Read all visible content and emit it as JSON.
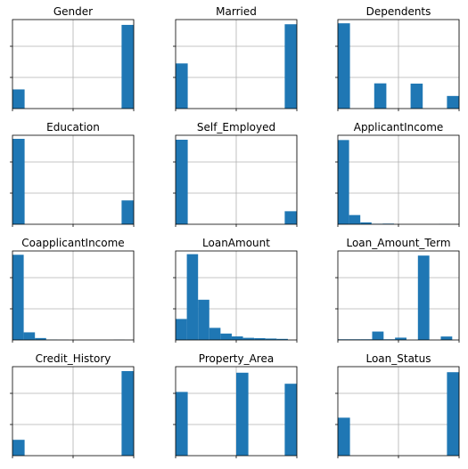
{
  "colors": {
    "bar": "#1f77b4",
    "grid": "#b0b0b0",
    "axis": "#000000",
    "background": "#ffffff"
  },
  "chart_data": [
    {
      "type": "bar",
      "title": "Gender",
      "grid": true,
      "bins": 10,
      "xlim": [
        0,
        10
      ],
      "ylim": [
        0,
        520
      ],
      "values": [
        112,
        0,
        0,
        0,
        0,
        0,
        0,
        0,
        0,
        489
      ]
    },
    {
      "type": "bar",
      "title": "Married",
      "grid": true,
      "bins": 10,
      "xlim": [
        0,
        10
      ],
      "ylim": [
        0,
        420
      ],
      "values": [
        213,
        0,
        0,
        0,
        0,
        0,
        0,
        0,
        0,
        398
      ]
    },
    {
      "type": "bar",
      "title": "Dependents",
      "grid": true,
      "bins": 10,
      "xlim": [
        0,
        10
      ],
      "ylim": [
        0,
        360
      ],
      "values": [
        345,
        0,
        0,
        102,
        0,
        0,
        101,
        0,
        0,
        51
      ]
    },
    {
      "type": "bar",
      "title": "Education",
      "grid": true,
      "bins": 10,
      "xlim": [
        0,
        10
      ],
      "ylim": [
        0,
        500
      ],
      "values": [
        480,
        0,
        0,
        0,
        0,
        0,
        0,
        0,
        0,
        134
      ]
    },
    {
      "type": "bar",
      "title": "Self_Employed",
      "grid": true,
      "bins": 10,
      "xlim": [
        0,
        10
      ],
      "ylim": [
        0,
        560
      ],
      "values": [
        532,
        0,
        0,
        0,
        0,
        0,
        0,
        0,
        0,
        82
      ]
    },
    {
      "type": "bar",
      "title": "ApplicantIncome",
      "grid": true,
      "bins": 10,
      "xlim": [
        0,
        10.8
      ],
      "ylim": [
        0,
        560
      ],
      "values": [
        530,
        58,
        12,
        3,
        4,
        0,
        0,
        0,
        0,
        1
      ]
    },
    {
      "type": "bar",
      "title": "CoapplicantIncome",
      "grid": true,
      "bins": 10,
      "xlim": [
        0,
        10.8
      ],
      "ylim": [
        0,
        560
      ],
      "values": [
        536,
        48,
        12,
        2,
        1,
        0,
        0,
        0,
        0,
        1
      ]
    },
    {
      "type": "bar",
      "title": "LoanAmount",
      "grid": true,
      "bins": 10,
      "xlim": [
        0,
        10.8
      ],
      "ylim": [
        0,
        250
      ],
      "values": [
        59,
        241,
        113,
        34,
        18,
        10,
        6,
        5,
        4,
        3
      ]
    },
    {
      "type": "bar",
      "title": "Loan_Amount_Term",
      "grid": true,
      "bins": 10,
      "xlim": [
        0,
        10.6
      ],
      "ylim": [
        0,
        540
      ],
      "values": [
        4,
        4,
        4,
        51,
        4,
        14,
        0,
        512,
        0,
        21
      ]
    },
    {
      "type": "bar",
      "title": "Credit_History",
      "grid": true,
      "bins": 10,
      "xlim": [
        0,
        10
      ],
      "ylim": [
        0,
        500
      ],
      "values": [
        89,
        0,
        0,
        0,
        0,
        0,
        0,
        0,
        0,
        475
      ]
    },
    {
      "type": "bar",
      "title": "Property_Area",
      "grid": true,
      "bins": 10,
      "xlim": [
        0,
        10
      ],
      "ylim": [
        0,
        250
      ],
      "values": [
        179,
        0,
        0,
        0,
        0,
        233,
        0,
        0,
        0,
        202
      ]
    },
    {
      "type": "bar",
      "title": "Loan_Status",
      "grid": true,
      "bins": 10,
      "xlim": [
        0,
        10
      ],
      "ylim": [
        0,
        450
      ],
      "values": [
        192,
        0,
        0,
        0,
        0,
        0,
        0,
        0,
        0,
        422
      ]
    }
  ]
}
